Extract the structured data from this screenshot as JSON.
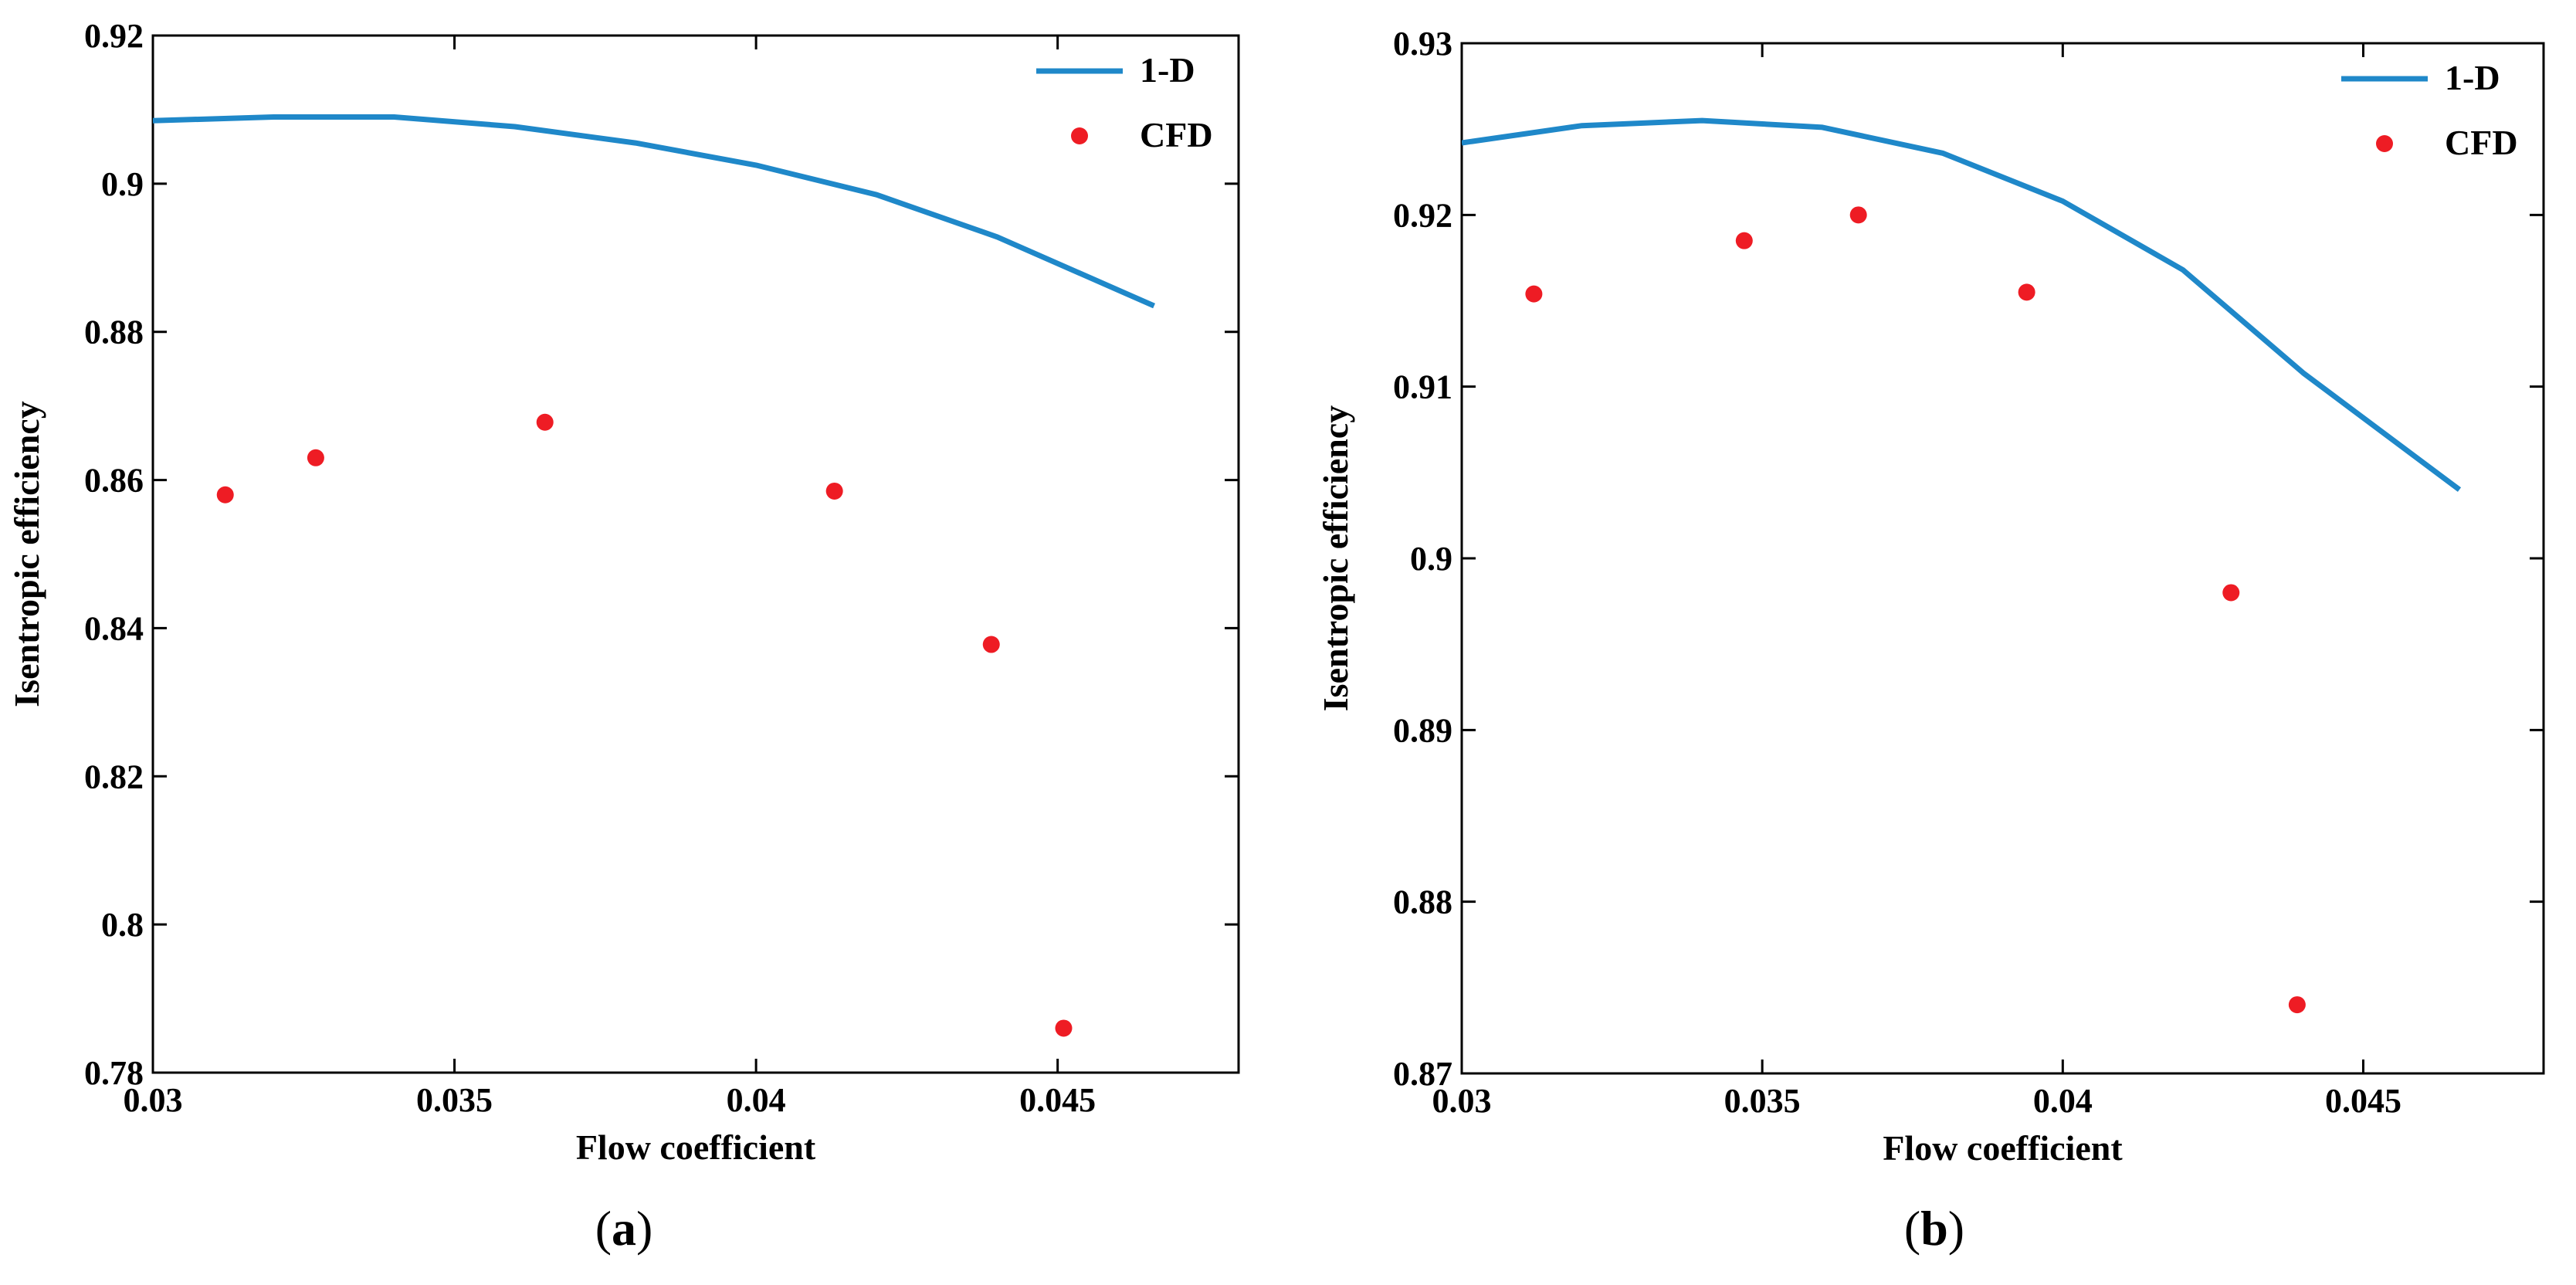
{
  "chart_data": [
    {
      "type": "line+scatter",
      "panel_label": "a",
      "xlabel": "Flow coefficient",
      "ylabel": "Isentropic efficiency",
      "xlim": [
        0.03,
        0.048
      ],
      "ylim": [
        0.78,
        0.92
      ],
      "xticks": [
        0.03,
        0.035,
        0.04,
        0.045
      ],
      "xtick_labels": [
        "0.03",
        "0.035",
        "0.04",
        "0.045"
      ],
      "yticks": [
        0.78,
        0.8,
        0.82,
        0.84,
        0.86,
        0.88,
        0.9,
        0.92
      ],
      "ytick_labels": [
        "0.78",
        "0.8",
        "0.82",
        "0.84",
        "0.86",
        "0.88",
        "0.9",
        "0.92"
      ],
      "grid": false,
      "legend_position": "top-right",
      "series": [
        {
          "name": "1-D",
          "kind": "line",
          "color": "#1f88c9",
          "x": [
            0.03,
            0.032,
            0.034,
            0.036,
            0.038,
            0.04,
            0.042,
            0.044,
            0.0466
          ],
          "y": [
            0.9085,
            0.909,
            0.909,
            0.9077,
            0.9055,
            0.9025,
            0.8985,
            0.8928,
            0.8835
          ]
        },
        {
          "name": "CFD",
          "kind": "scatter",
          "color": "#ee1c24",
          "x": [
            0.0312,
            0.0327,
            0.0365,
            0.0413,
            0.0439,
            0.0451
          ],
          "y": [
            0.858,
            0.863,
            0.8678,
            0.8585,
            0.8378,
            0.786
          ]
        }
      ]
    },
    {
      "type": "line+scatter",
      "panel_label": "b",
      "xlabel": "Flow coefficient",
      "ylabel": "Isentropic efficiency",
      "xlim": [
        0.03,
        0.048
      ],
      "ylim": [
        0.87,
        0.93
      ],
      "xticks": [
        0.03,
        0.035,
        0.04,
        0.045
      ],
      "xtick_labels": [
        "0.03",
        "0.035",
        "0.04",
        "0.045"
      ],
      "yticks": [
        0.87,
        0.88,
        0.89,
        0.9,
        0.91,
        0.92,
        0.93
      ],
      "ytick_labels": [
        "0.87",
        "0.88",
        "0.89",
        "0.9",
        "0.91",
        "0.92",
        "0.93"
      ],
      "grid": false,
      "legend_position": "top-right",
      "series": [
        {
          "name": "1-D",
          "kind": "line",
          "color": "#1f88c9",
          "x": [
            0.03,
            0.032,
            0.034,
            0.036,
            0.038,
            0.04,
            0.042,
            0.044,
            0.0466
          ],
          "y": [
            0.9242,
            0.9252,
            0.9255,
            0.9251,
            0.9236,
            0.9208,
            0.9168,
            0.9108,
            0.904
          ]
        },
        {
          "name": "CFD",
          "kind": "scatter",
          "color": "#ee1c24",
          "x": [
            0.0312,
            0.0347,
            0.0366,
            0.0394,
            0.0428,
            0.0439
          ],
          "y": [
            0.9154,
            0.9185,
            0.92,
            0.9155,
            0.898,
            0.874
          ]
        }
      ]
    }
  ]
}
